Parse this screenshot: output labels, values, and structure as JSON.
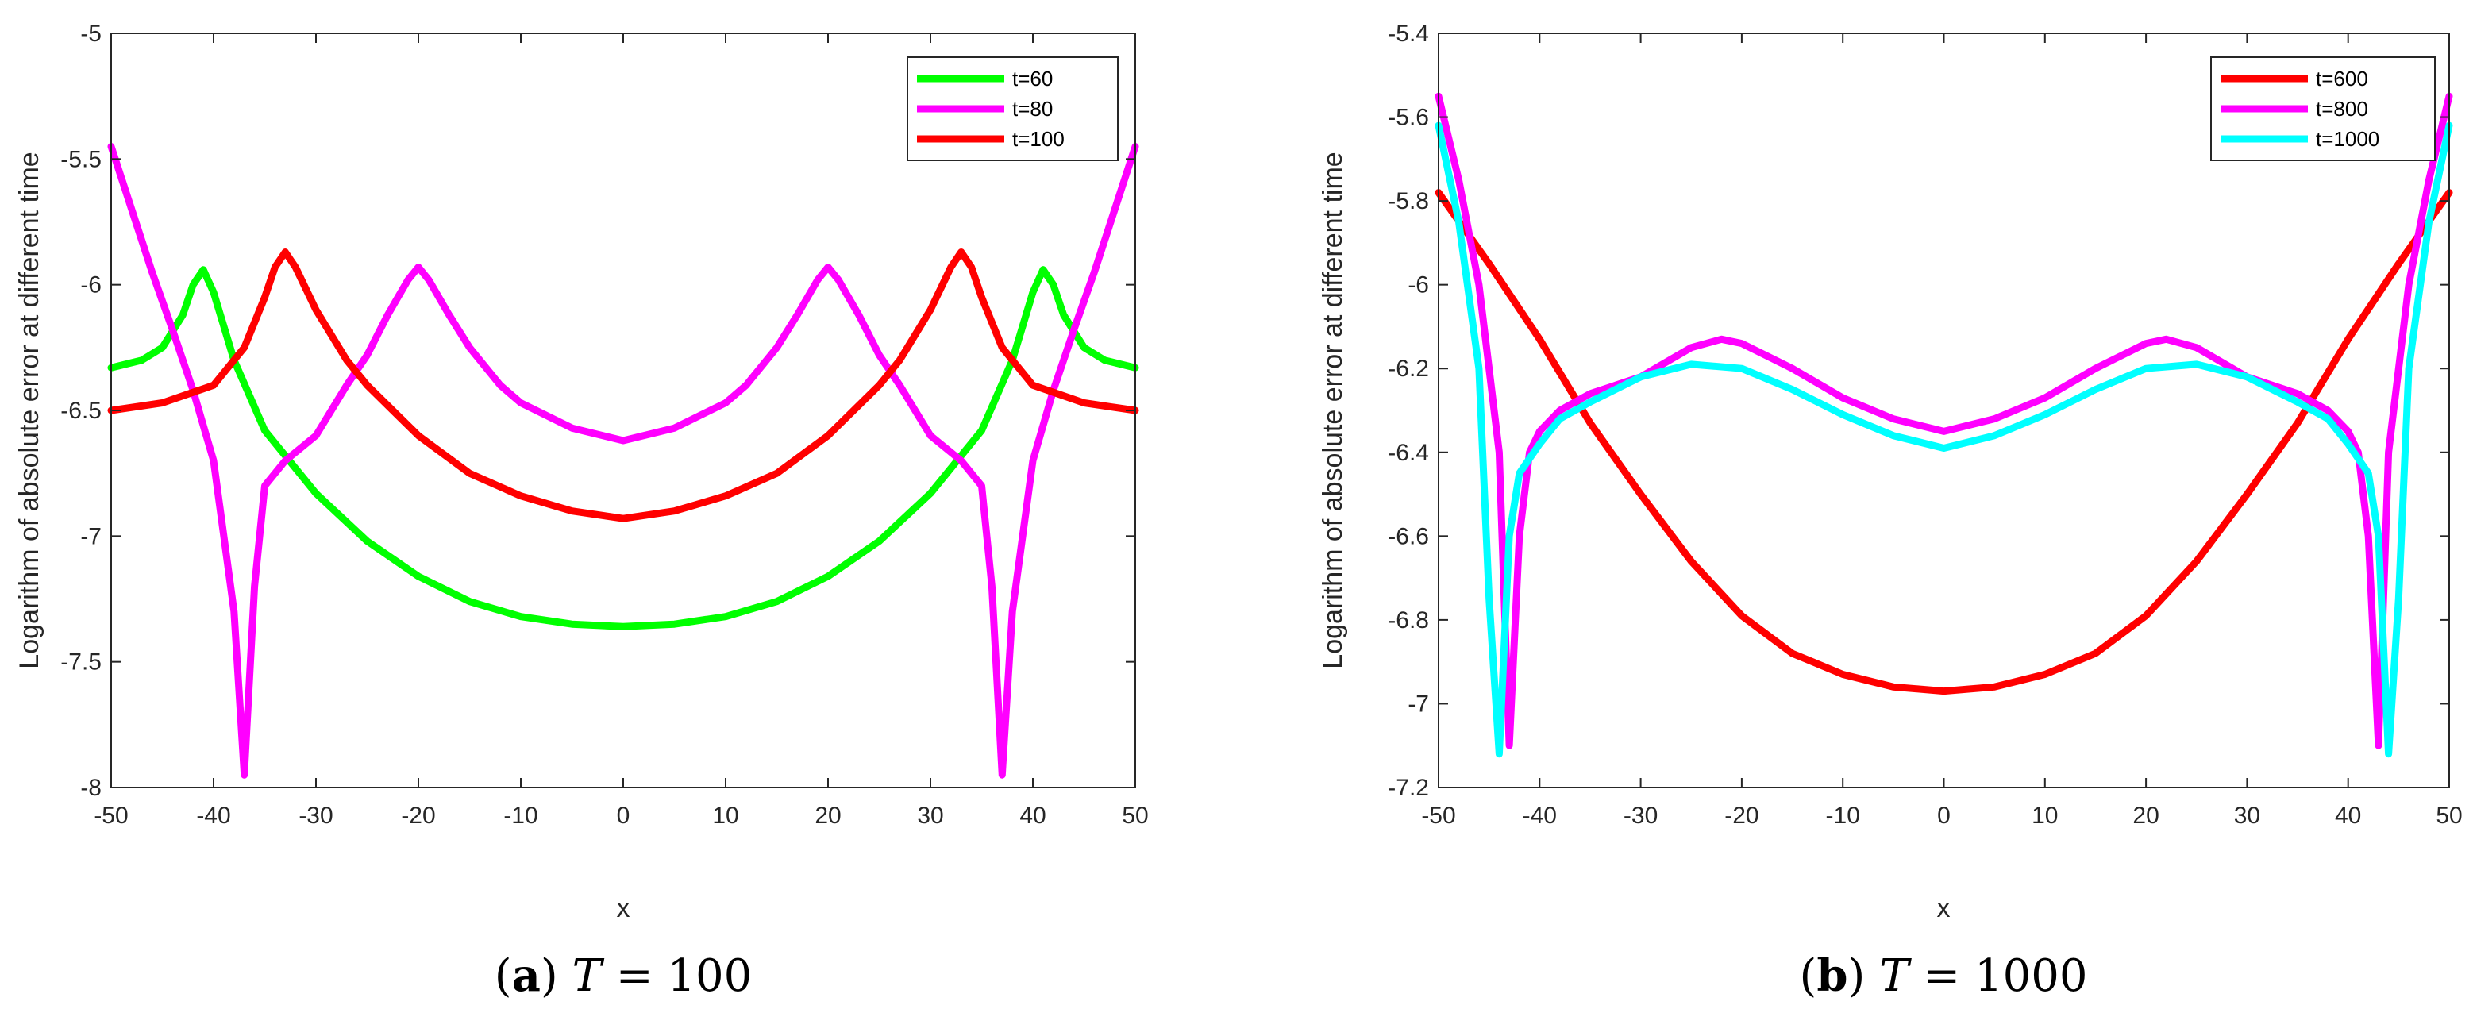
{
  "chart_data": [
    {
      "type": "line",
      "caption": {
        "tag": "a",
        "variable": "T",
        "relation": "= 100"
      },
      "title": "",
      "xlabel": "x",
      "ylabel": "Logarithm of absolute error at different time",
      "xlim": [
        -50,
        50
      ],
      "ylim": [
        -8,
        -5
      ],
      "xticks": [
        "-50",
        "-40",
        "-30",
        "-20",
        "-10",
        "0",
        "10",
        "20",
        "30",
        "40",
        "50"
      ],
      "yticks": [
        "-8",
        "-7.5",
        "-7",
        "-6.5",
        "-6",
        "-5.5",
        "-5"
      ],
      "legend_position": "top-right",
      "series": [
        {
          "name": "t=60",
          "color": "#00ff00",
          "x": [
            -50,
            -47,
            -45,
            -43,
            -42,
            -41,
            -40,
            -38,
            -35,
            -30,
            -25,
            -20,
            -15,
            -10,
            -5,
            0,
            5,
            10,
            15,
            20,
            25,
            30,
            35,
            38,
            40,
            41,
            42,
            43,
            45,
            47,
            50
          ],
          "y": [
            -6.33,
            -6.3,
            -6.25,
            -6.12,
            -6.0,
            -5.94,
            -6.03,
            -6.3,
            -6.58,
            -6.83,
            -7.02,
            -7.16,
            -7.26,
            -7.32,
            -7.35,
            -7.36,
            -7.35,
            -7.32,
            -7.26,
            -7.16,
            -7.02,
            -6.83,
            -6.58,
            -6.3,
            -6.03,
            -5.94,
            -6.0,
            -6.12,
            -6.25,
            -6.3,
            -6.33
          ]
        },
        {
          "name": "t=80",
          "color": "#ff00ff",
          "x": [
            -50,
            -48,
            -46,
            -44,
            -42,
            -40,
            -38,
            -37,
            -36,
            -35,
            -33,
            -30,
            -27,
            -25,
            -23,
            -21,
            -20,
            -19,
            -17,
            -15,
            -12,
            -10,
            -5,
            0,
            5,
            10,
            12,
            15,
            17,
            19,
            20,
            21,
            23,
            25,
            27,
            30,
            33,
            35,
            36,
            37,
            38,
            40,
            42,
            44,
            46,
            48,
            50
          ],
          "y": [
            -5.45,
            -5.7,
            -5.95,
            -6.18,
            -6.42,
            -6.7,
            -7.3,
            -7.95,
            -7.2,
            -6.8,
            -6.7,
            -6.6,
            -6.4,
            -6.28,
            -6.12,
            -5.98,
            -5.93,
            -5.98,
            -6.12,
            -6.25,
            -6.4,
            -6.47,
            -6.57,
            -6.62,
            -6.57,
            -6.47,
            -6.4,
            -6.25,
            -6.12,
            -5.98,
            -5.93,
            -5.98,
            -6.12,
            -6.28,
            -6.4,
            -6.6,
            -6.7,
            -6.8,
            -7.2,
            -7.95,
            -7.3,
            -6.7,
            -6.42,
            -6.18,
            -5.95,
            -5.7,
            -5.45
          ]
        },
        {
          "name": "t=100",
          "color": "#ff0000",
          "x": [
            -50,
            -45,
            -40,
            -37,
            -35,
            -34,
            -33,
            -32,
            -30,
            -27,
            -25,
            -20,
            -15,
            -10,
            -5,
            0,
            5,
            10,
            15,
            20,
            25,
            27,
            30,
            32,
            33,
            34,
            35,
            37,
            40,
            45,
            50
          ],
          "y": [
            -6.5,
            -6.47,
            -6.4,
            -6.25,
            -6.05,
            -5.93,
            -5.87,
            -5.93,
            -6.1,
            -6.3,
            -6.4,
            -6.6,
            -6.75,
            -6.84,
            -6.9,
            -6.93,
            -6.9,
            -6.84,
            -6.75,
            -6.6,
            -6.4,
            -6.3,
            -6.1,
            -5.93,
            -5.87,
            -5.93,
            -6.05,
            -6.25,
            -6.4,
            -6.47,
            -6.5
          ]
        }
      ]
    },
    {
      "type": "line",
      "caption": {
        "tag": "b",
        "variable": "T",
        "relation": "= 1000"
      },
      "title": "",
      "xlabel": "x",
      "ylabel": "Logarithm of absolute error at different time",
      "xlim": [
        -50,
        50
      ],
      "ylim": [
        -7.2,
        -5.4
      ],
      "xticks": [
        "-50",
        "-40",
        "-30",
        "-20",
        "-10",
        "0",
        "10",
        "20",
        "30",
        "40",
        "50"
      ],
      "yticks": [
        "-7.2",
        "-7",
        "-6.8",
        "-6.6",
        "-6.4",
        "-6.2",
        "-6",
        "-5.8",
        "-5.6",
        "-5.4"
      ],
      "legend_position": "top-right",
      "series": [
        {
          "name": "t=600",
          "color": "#ff0000",
          "x": [
            -50,
            -45,
            -40,
            -35,
            -30,
            -25,
            -20,
            -15,
            -10,
            -5,
            0,
            5,
            10,
            15,
            20,
            25,
            30,
            35,
            40,
            45,
            50
          ],
          "y": [
            -5.78,
            -5.95,
            -6.13,
            -6.33,
            -6.5,
            -6.66,
            -6.79,
            -6.88,
            -6.93,
            -6.96,
            -6.97,
            -6.96,
            -6.93,
            -6.88,
            -6.79,
            -6.66,
            -6.5,
            -6.33,
            -6.13,
            -5.95,
            -5.78
          ]
        },
        {
          "name": "t=800",
          "color": "#ff00ff",
          "x": [
            -50,
            -48,
            -46,
            -44,
            -43,
            -42,
            -41,
            -40,
            -38,
            -35,
            -30,
            -25,
            -22,
            -20,
            -15,
            -10,
            -5,
            0,
            5,
            10,
            15,
            20,
            22,
            25,
            30,
            35,
            38,
            40,
            41,
            42,
            43,
            44,
            46,
            48,
            50
          ],
          "y": [
            -5.55,
            -5.75,
            -6.0,
            -6.4,
            -7.1,
            -6.6,
            -6.4,
            -6.35,
            -6.3,
            -6.26,
            -6.22,
            -6.15,
            -6.13,
            -6.14,
            -6.2,
            -6.27,
            -6.32,
            -6.35,
            -6.32,
            -6.27,
            -6.2,
            -6.14,
            -6.13,
            -6.15,
            -6.22,
            -6.26,
            -6.3,
            -6.35,
            -6.4,
            -6.6,
            -7.1,
            -6.4,
            -6.0,
            -5.75,
            -5.55
          ]
        },
        {
          "name": "t=1000",
          "color": "#00ffff",
          "x": [
            -50,
            -48,
            -46,
            -45,
            -44,
            -43,
            -42,
            -40,
            -38,
            -35,
            -30,
            -25,
            -20,
            -15,
            -10,
            -5,
            0,
            5,
            10,
            15,
            20,
            25,
            30,
            35,
            38,
            40,
            42,
            43,
            44,
            45,
            46,
            48,
            50
          ],
          "y": [
            -5.62,
            -5.85,
            -6.2,
            -6.75,
            -7.12,
            -6.6,
            -6.45,
            -6.38,
            -6.32,
            -6.28,
            -6.22,
            -6.19,
            -6.2,
            -6.25,
            -6.31,
            -6.36,
            -6.39,
            -6.36,
            -6.31,
            -6.25,
            -6.2,
            -6.19,
            -6.22,
            -6.28,
            -6.32,
            -6.38,
            -6.45,
            -6.6,
            -7.12,
            -6.75,
            -6.2,
            -5.85,
            -5.62
          ]
        }
      ]
    }
  ]
}
